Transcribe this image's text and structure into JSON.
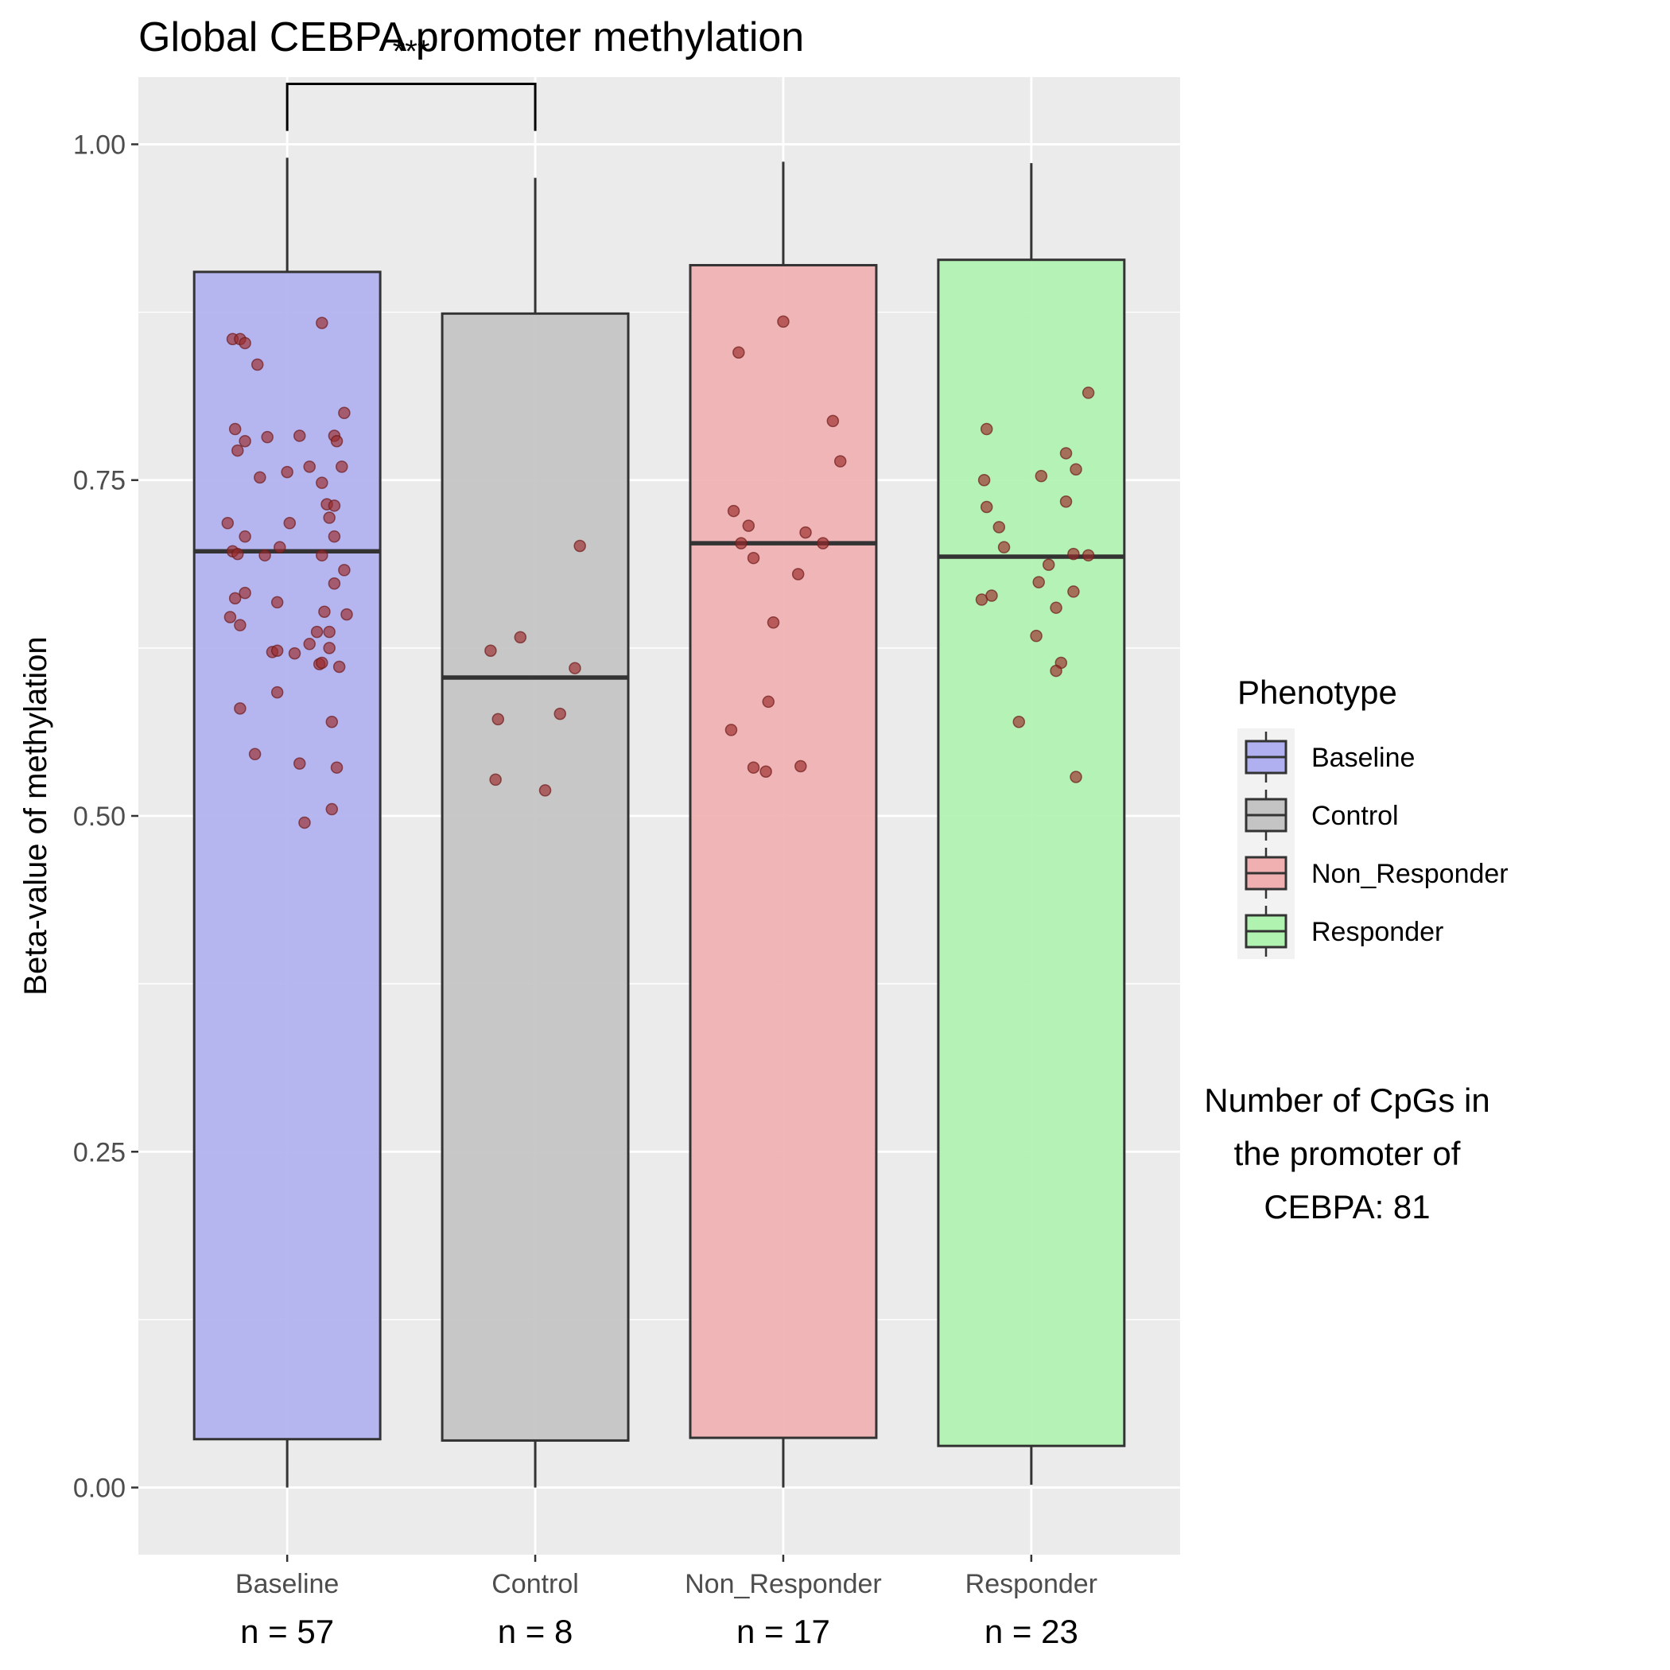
{
  "chart_data": {
    "type": "box",
    "title": "Global CEBPA promoter methylation",
    "ylabel": "Beta-value of methylation",
    "xlabel": "",
    "ylim": [
      -0.05,
      1.05
    ],
    "yticks": [
      "0.00",
      "0.25",
      "0.50",
      "0.75",
      "1.00"
    ],
    "grid": true,
    "categories": [
      "Baseline",
      "Control",
      "Non_Responder",
      "Responder"
    ],
    "counts": [
      "n = 57",
      "n = 8",
      "n = 17",
      "n = 23"
    ],
    "colors": [
      "#b0b0f0",
      "#c4c4c4",
      "#f0b0b2",
      "#b0f2b0"
    ],
    "point_color": "#9b2a2a",
    "boxes": [
      {
        "whisker_low": 0.0,
        "q1": 0.036,
        "median": 0.697,
        "q3": 0.905,
        "whisker_high": 0.99
      },
      {
        "whisker_low": 0.0,
        "q1": 0.035,
        "median": 0.603,
        "q3": 0.874,
        "whisker_high": 0.975
      },
      {
        "whisker_low": 0.0,
        "q1": 0.037,
        "median": 0.703,
        "q3": 0.91,
        "whisker_high": 0.987
      },
      {
        "whisker_low": 0.002,
        "q1": 0.031,
        "median": 0.693,
        "q3": 0.914,
        "whisker_high": 0.986
      }
    ],
    "points": [
      [
        [
          -0.22,
          0.855
        ],
        [
          -0.19,
          0.855
        ],
        [
          -0.17,
          0.852
        ],
        [
          0.14,
          0.867
        ],
        [
          -0.12,
          0.836
        ],
        [
          0.23,
          0.8
        ],
        [
          -0.21,
          0.788
        ],
        [
          -0.17,
          0.779
        ],
        [
          -0.08,
          0.782
        ],
        [
          0.05,
          0.783
        ],
        [
          0.19,
          0.783
        ],
        [
          0.2,
          0.779
        ],
        [
          -0.2,
          0.772
        ],
        [
          0.22,
          0.76
        ],
        [
          -0.11,
          0.752
        ],
        [
          0.0,
          0.756
        ],
        [
          0.09,
          0.76
        ],
        [
          0.14,
          0.748
        ],
        [
          0.16,
          0.732
        ],
        [
          0.19,
          0.731
        ],
        [
          0.17,
          0.722
        ],
        [
          -0.24,
          0.718
        ],
        [
          0.01,
          0.718
        ],
        [
          -0.17,
          0.708
        ],
        [
          0.19,
          0.708
        ],
        [
          -0.03,
          0.7
        ],
        [
          -0.22,
          0.697
        ],
        [
          -0.2,
          0.695
        ],
        [
          -0.09,
          0.694
        ],
        [
          0.14,
          0.694
        ],
        [
          0.23,
          0.683
        ],
        [
          0.19,
          0.673
        ],
        [
          -0.21,
          0.662
        ],
        [
          -0.17,
          0.666
        ],
        [
          -0.04,
          0.659
        ],
        [
          -0.23,
          0.648
        ],
        [
          0.15,
          0.652
        ],
        [
          0.24,
          0.65
        ],
        [
          -0.19,
          0.642
        ],
        [
          0.12,
          0.637
        ],
        [
          0.17,
          0.637
        ],
        [
          0.09,
          0.628
        ],
        [
          0.17,
          0.625
        ],
        [
          -0.06,
          0.622
        ],
        [
          -0.04,
          0.623
        ],
        [
          0.03,
          0.621
        ],
        [
          0.13,
          0.613
        ],
        [
          0.14,
          0.614
        ],
        [
          0.21,
          0.611
        ],
        [
          -0.04,
          0.592
        ],
        [
          -0.19,
          0.58
        ],
        [
          0.18,
          0.57
        ],
        [
          -0.13,
          0.546
        ],
        [
          0.05,
          0.539
        ],
        [
          0.2,
          0.536
        ],
        [
          0.18,
          0.505
        ],
        [
          0.07,
          0.495
        ]
      ],
      [
        [
          0.18,
          0.701
        ],
        [
          -0.06,
          0.633
        ],
        [
          -0.18,
          0.623
        ],
        [
          0.16,
          0.61
        ],
        [
          0.1,
          0.576
        ],
        [
          -0.15,
          0.572
        ],
        [
          -0.16,
          0.527
        ],
        [
          0.04,
          0.519
        ]
      ],
      [
        [
          0.0,
          0.868
        ],
        [
          -0.18,
          0.845
        ],
        [
          0.2,
          0.794
        ],
        [
          0.23,
          0.764
        ],
        [
          -0.2,
          0.727
        ],
        [
          -0.14,
          0.716
        ],
        [
          0.09,
          0.711
        ],
        [
          -0.17,
          0.703
        ],
        [
          0.16,
          0.703
        ],
        [
          -0.12,
          0.692
        ],
        [
          0.06,
          0.68
        ],
        [
          -0.04,
          0.644
        ],
        [
          -0.06,
          0.585
        ],
        [
          -0.21,
          0.564
        ],
        [
          0.07,
          0.537
        ],
        [
          -0.12,
          0.536
        ],
        [
          -0.07,
          0.533
        ]
      ],
      [
        [
          0.23,
          0.815
        ],
        [
          -0.18,
          0.788
        ],
        [
          0.14,
          0.77
        ],
        [
          0.18,
          0.758
        ],
        [
          -0.19,
          0.75
        ],
        [
          0.04,
          0.753
        ],
        [
          -0.18,
          0.73
        ],
        [
          0.14,
          0.734
        ],
        [
          -0.13,
          0.715
        ],
        [
          -0.11,
          0.7
        ],
        [
          0.17,
          0.695
        ],
        [
          0.23,
          0.694
        ],
        [
          -0.2,
          0.661
        ],
        [
          -0.16,
          0.664
        ],
        [
          0.07,
          0.687
        ],
        [
          0.03,
          0.674
        ],
        [
          0.17,
          0.667
        ],
        [
          0.1,
          0.655
        ],
        [
          0.02,
          0.634
        ],
        [
          0.12,
          0.614
        ],
        [
          0.1,
          0.608
        ],
        [
          -0.05,
          0.57
        ],
        [
          0.18,
          0.529
        ]
      ]
    ],
    "significance": {
      "label": "***",
      "from": 0,
      "to": 1,
      "y_top": 1.045,
      "y_bottom": 1.01
    },
    "legend": {
      "title": "Phenotype",
      "position": "right",
      "items": [
        "Baseline",
        "Control",
        "Non_Responder",
        "Responder"
      ]
    },
    "annotation": [
      "Number of CpGs in",
      "the promoter of",
      "CEBPA: 81"
    ]
  }
}
